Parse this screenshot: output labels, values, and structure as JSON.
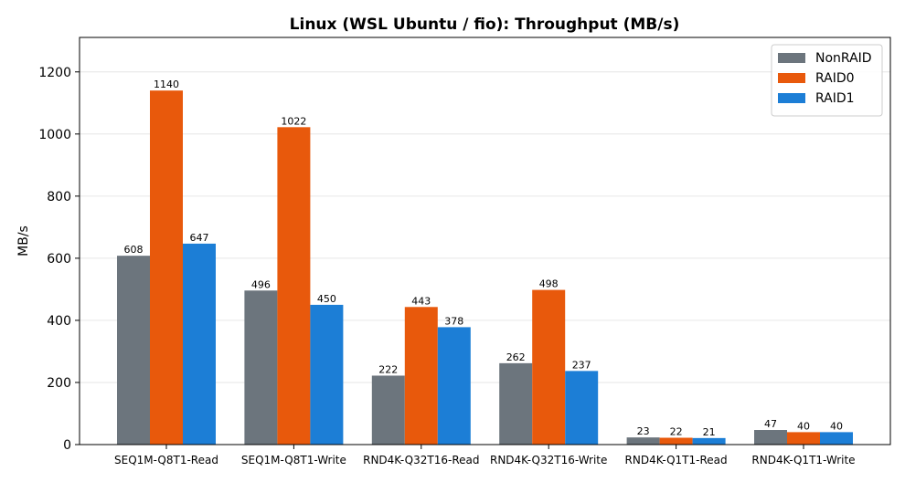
{
  "chart_data": {
    "type": "bar",
    "title": "Linux (WSL Ubuntu / fio): Throughput (MB/s)",
    "xlabel": "",
    "ylabel": "MB/s",
    "ylim": [
      0,
      1311
    ],
    "yticks": [
      0,
      200,
      400,
      600,
      800,
      1000,
      1200
    ],
    "grid": "y",
    "legend_position": "top-right",
    "categories": [
      "SEQ1M-Q8T1-Read",
      "SEQ1M-Q8T1-Write",
      "RND4K-Q32T16-Read",
      "RND4K-Q32T16-Write",
      "RND4K-Q1T1-Read",
      "RND4K-Q1T1-Write"
    ],
    "series": [
      {
        "name": "NonRAID",
        "color": "#6c757d",
        "values": [
          608,
          496,
          222,
          262,
          23,
          47
        ]
      },
      {
        "name": "RAID0",
        "color": "#e8590c",
        "values": [
          1140,
          1022,
          443,
          498,
          22,
          40
        ]
      },
      {
        "name": "RAID1",
        "color": "#1c7ed6",
        "values": [
          647,
          450,
          378,
          237,
          21,
          40
        ]
      }
    ]
  }
}
